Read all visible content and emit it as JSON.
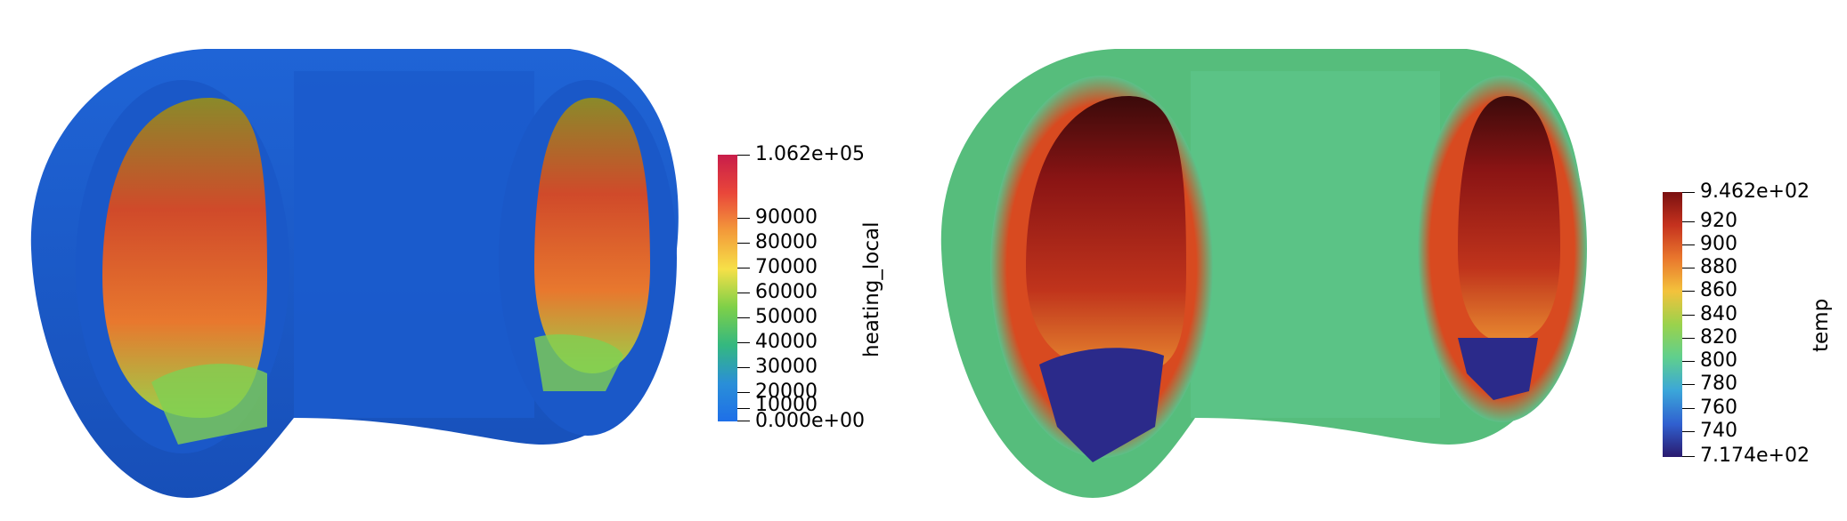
{
  "left": {
    "colorbar": {
      "title": "heating_local",
      "max_label": "1.062e+05",
      "min_label": "0.000e+00",
      "ticks": [
        "90000",
        "80000",
        "70000",
        "60000",
        "50000",
        "40000",
        "30000",
        "20000",
        "10000"
      ],
      "colors": [
        "#c81d4a",
        "#e9463a",
        "#f39a3a",
        "#f6e048",
        "#7ed048",
        "#34b880",
        "#2a8fd8",
        "#1e6fe8"
      ]
    }
  },
  "right": {
    "colorbar": {
      "title": "temp",
      "max_label": "9.462e+02",
      "min_label": "7.174e+02",
      "ticks": [
        "920",
        "900",
        "880",
        "860",
        "840",
        "820",
        "800",
        "780",
        "760",
        "740"
      ],
      "colors": [
        "#7a1010",
        "#c5321e",
        "#e9772d",
        "#f3c23c",
        "#9ad24c",
        "#5fcf8e",
        "#3ba6d9",
        "#3060d0",
        "#2a1a6e"
      ]
    }
  }
}
